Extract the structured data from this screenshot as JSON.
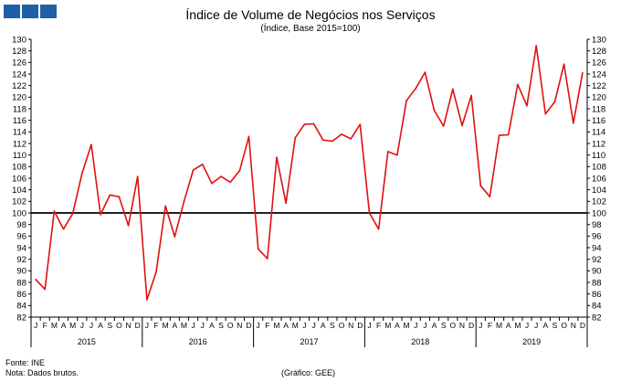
{
  "header": {
    "title": "Índice de Volume de Negócios nos Serviços",
    "subtitle": "(Índice, Base 2015=100)"
  },
  "footer": {
    "source": "Fonte: INE",
    "note": "Nota: Dados brutos.",
    "credit": "(Gráfico: GEE)"
  },
  "colors": {
    "series": "#e01010",
    "baseline": "#000000",
    "logo": "#1f5fa8"
  },
  "chart_data": {
    "type": "line",
    "title": "Índice de Volume de Negócios nos Serviços",
    "subtitle": "(Índice, Base 2015=100)",
    "ylim": [
      82,
      130
    ],
    "yticks": [
      82,
      84,
      86,
      88,
      90,
      92,
      94,
      96,
      98,
      100,
      102,
      104,
      106,
      108,
      110,
      112,
      114,
      116,
      118,
      120,
      122,
      124,
      126,
      128,
      130
    ],
    "months": [
      "J",
      "F",
      "M",
      "A",
      "M",
      "J",
      "J",
      "A",
      "S",
      "O",
      "N",
      "D"
    ],
    "years": [
      "2015",
      "2016",
      "2017",
      "2018",
      "2019"
    ],
    "reference_line": 100,
    "grid": false,
    "series": [
      {
        "values": [
          88.5,
          86.8,
          100.3,
          97.2,
          99.9,
          106.8,
          111.8,
          99.7,
          103.1,
          102.8,
          97.8,
          106.3,
          85.0,
          89.8,
          101.2,
          95.9,
          102.0,
          107.4,
          108.4,
          105.1,
          106.3,
          105.3,
          107.3,
          113.2,
          93.8,
          92.1,
          109.6,
          101.7,
          113.0,
          115.3,
          115.4,
          112.6,
          112.4,
          113.6,
          112.8,
          115.3,
          100.0,
          97.2,
          110.6,
          110.0,
          119.4,
          121.5,
          124.3,
          117.7,
          115.0,
          121.4,
          115.1,
          120.3,
          104.7,
          102.8,
          113.4,
          113.5,
          122.2,
          118.5,
          128.9,
          117.1,
          119.2,
          125.7,
          115.5,
          124.2
        ]
      }
    ]
  }
}
